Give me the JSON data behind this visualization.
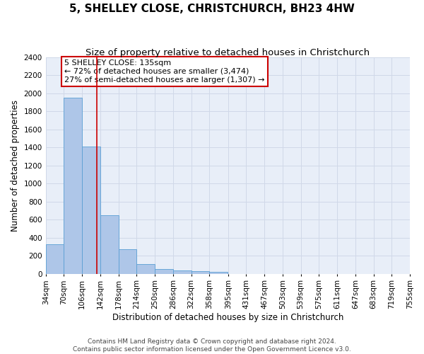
{
  "title": "5, SHELLEY CLOSE, CHRISTCHURCH, BH23 4HW",
  "subtitle": "Size of property relative to detached houses in Christchurch",
  "xlabel": "Distribution of detached houses by size in Christchurch",
  "ylabel": "Number of detached properties",
  "footer_line1": "Contains HM Land Registry data © Crown copyright and database right 2024.",
  "footer_line2": "Contains public sector information licensed under the Open Government Licence v3.0.",
  "bin_labels": [
    "34sqm",
    "70sqm",
    "106sqm",
    "142sqm",
    "178sqm",
    "214sqm",
    "250sqm",
    "286sqm",
    "322sqm",
    "358sqm",
    "395sqm",
    "431sqm",
    "467sqm",
    "503sqm",
    "539sqm",
    "575sqm",
    "611sqm",
    "647sqm",
    "683sqm",
    "719sqm",
    "755sqm"
  ],
  "bin_edges": [
    34,
    70,
    106,
    142,
    178,
    214,
    250,
    286,
    322,
    358,
    395,
    431,
    467,
    503,
    539,
    575,
    611,
    647,
    683,
    719,
    755
  ],
  "bar_values": [
    325,
    1950,
    1410,
    650,
    275,
    105,
    50,
    40,
    30,
    20,
    0,
    0,
    0,
    0,
    0,
    0,
    0,
    0,
    0,
    0
  ],
  "bar_color": "#aec6e8",
  "bar_edge_color": "#5a9fd4",
  "vline_x": 135,
  "vline_color": "#cc0000",
  "ylim": [
    0,
    2400
  ],
  "yticks": [
    0,
    200,
    400,
    600,
    800,
    1000,
    1200,
    1400,
    1600,
    1800,
    2000,
    2200,
    2400
  ],
  "annotation_text_line1": "5 SHELLEY CLOSE: 135sqm",
  "annotation_text_line2": "← 72% of detached houses are smaller (3,474)",
  "annotation_text_line3": "27% of semi-detached houses are larger (1,307) →",
  "annotation_box_color": "#ffffff",
  "annotation_border_color": "#cc0000",
  "grid_color": "#d0d8e8",
  "bg_color": "#e8eef8",
  "fig_bg_color": "#ffffff",
  "title_fontsize": 11,
  "subtitle_fontsize": 9.5,
  "axis_label_fontsize": 8.5,
  "tick_fontsize": 7.5,
  "annotation_fontsize": 8,
  "footer_fontsize": 6.5
}
